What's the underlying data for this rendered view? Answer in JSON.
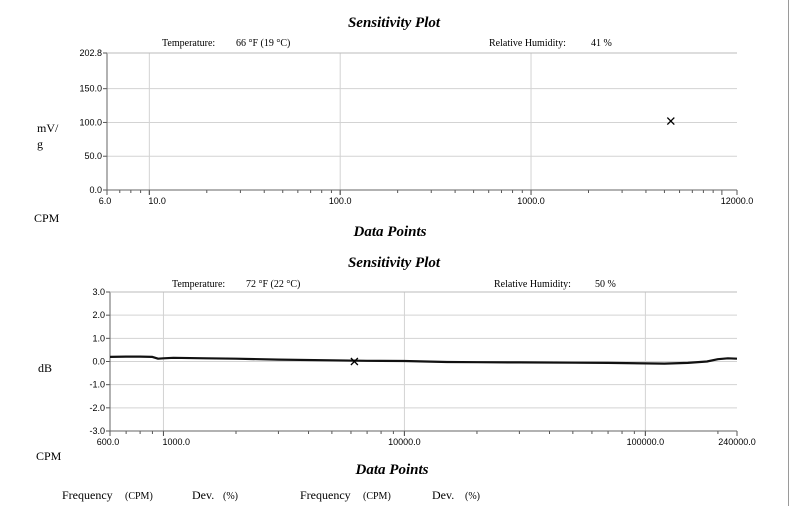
{
  "chart_data": [
    {
      "type": "scatter",
      "title": "Sensitivity Plot",
      "temperature_label": "Temperature:",
      "temperature_value": "66 °F (19 °C)",
      "humidity_label": "Relative Humidity:",
      "humidity_value": "41 %",
      "ylabel": "mV/\ng",
      "xunit": "CPM",
      "xlabel": "Data Points",
      "xscale": "log",
      "xlim": [
        6.0,
        12000.0
      ],
      "ylim": [
        0.0,
        202.8
      ],
      "yticks": [
        {
          "value": 0,
          "label": "0.0"
        },
        {
          "value": 50,
          "label": "50.0"
        },
        {
          "value": 100,
          "label": "100.0"
        },
        {
          "value": 150,
          "label": "150.0"
        },
        {
          "value": 202.8,
          "label": "202.8"
        }
      ],
      "xticks": [
        {
          "value": 6.0,
          "label": "6.0"
        },
        {
          "value": 10.0,
          "label": "10.0"
        },
        {
          "value": 100.0,
          "label": "100.0"
        },
        {
          "value": 1000.0,
          "label": "1000.0"
        },
        {
          "value": 12000.0,
          "label": "12000.0"
        }
      ],
      "grid": true,
      "markers": [
        {
          "x": 5400,
          "y": 102
        }
      ],
      "series": []
    },
    {
      "type": "line",
      "title": "Sensitivity Plot",
      "temperature_label": "Temperature:",
      "temperature_value": "72 °F (22 °C)",
      "humidity_label": "Relative Humidity:",
      "humidity_value": "50 %",
      "ylabel": "dB",
      "xunit": "CPM",
      "xlabel": "Data Points",
      "xscale": "log",
      "xlim": [
        600.0,
        240000.0
      ],
      "ylim": [
        -3.0,
        3.0
      ],
      "yticks": [
        {
          "value": 3,
          "label": "3.0"
        },
        {
          "value": 2,
          "label": "2.0"
        },
        {
          "value": 1,
          "label": "1.0"
        },
        {
          "value": 0,
          "label": "0.0"
        },
        {
          "value": -1,
          "label": "-1.0"
        },
        {
          "value": -2,
          "label": "-2.0"
        },
        {
          "value": -3,
          "label": "-3.0"
        }
      ],
      "xticks": [
        {
          "value": 600.0,
          "label": "600.0"
        },
        {
          "value": 1000.0,
          "label": "1000.0"
        },
        {
          "value": 10000.0,
          "label": "10000.0"
        },
        {
          "value": 100000.0,
          "label": "100000.0"
        },
        {
          "value": 240000.0,
          "label": "240000.0"
        }
      ],
      "grid": true,
      "markers": [
        {
          "x": 6200,
          "y": 0.0
        }
      ],
      "series": [
        {
          "x": [
            600,
            700,
            800,
            900,
            950,
            1000,
            1100,
            1500,
            2000,
            3000,
            5000,
            7000,
            10000,
            15000,
            20000,
            30000,
            50000,
            70000,
            100000,
            120000,
            150000,
            180000,
            200000,
            220000,
            240000
          ],
          "y": [
            0.2,
            0.21,
            0.21,
            0.2,
            0.12,
            0.14,
            0.16,
            0.14,
            0.12,
            0.08,
            0.05,
            0.03,
            0.02,
            -0.02,
            -0.03,
            -0.04,
            -0.05,
            -0.06,
            -0.08,
            -0.09,
            -0.06,
            0.0,
            0.1,
            0.14,
            0.12
          ]
        }
      ]
    }
  ],
  "footer": {
    "col1_label": "Frequency",
    "col1_unit": "(CPM)",
    "col2_label": "Dev.",
    "col2_unit": "(%)",
    "col3_label": "Frequency",
    "col3_unit": "(CPM)",
    "col4_label": "Dev.",
    "col4_unit": "(%)"
  }
}
